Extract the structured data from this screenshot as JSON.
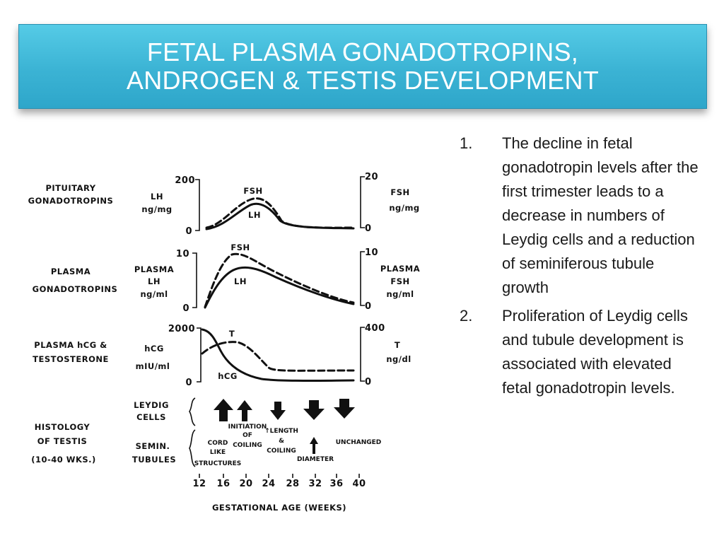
{
  "title": {
    "line1": "FETAL PLASMA GONADOTROPINS,",
    "line2": "ANDROGEN & TESTIS DEVELOPMENT"
  },
  "figure": {
    "row1": {
      "label_line1": "PITUITARY",
      "label_line2": "GONADOTROPINS",
      "left_unit_line1": "LH",
      "left_unit_line2": "ng/mg",
      "left_max": "200",
      "left_min": "0",
      "right_unit_line1": "FSH",
      "right_unit_line2": "ng/mg",
      "right_max": "20",
      "right_min": "0",
      "curve_label_1": "FSH",
      "curve_label_2": "LH"
    },
    "row2": {
      "label_line1": "PLASMA",
      "label_line2": "GONADOTROPINS",
      "left_unit_line1": "PLASMA",
      "left_unit_line2": "LH",
      "left_unit_line3": "ng/ml",
      "left_max": "10",
      "left_min": "0",
      "right_unit_line1": "PLASMA",
      "right_unit_line2": "FSH",
      "right_unit_line3": "ng/ml",
      "right_max": "10",
      "right_min": "0",
      "curve_label_1": "FSH",
      "curve_label_2": "LH"
    },
    "row3": {
      "label_line1": "PLASMA hCG &",
      "label_line2": "TESTOSTERONE",
      "left_unit_line1": "hCG",
      "left_unit_line2": "mIU/ml",
      "left_max": "2000",
      "left_min": "0",
      "right_unit_line1": "T",
      "right_unit_line2": "ng/dl",
      "right_max": "400",
      "right_min": "0",
      "curve_label_1": "T",
      "curve_label_2": "hCG"
    },
    "histology": {
      "label_line1": "HISTOLOGY",
      "label_line2": "OF TESTIS",
      "label_line3": "(10-40 WKS.)",
      "leydig_line1": "LEYDIG",
      "leydig_line2": "CELLS",
      "semin_line1": "SEMIN.",
      "semin_line2": "TUBULES",
      "arrows": [
        "up",
        "up",
        "down",
        "down",
        "down"
      ],
      "cord_line1": "CORD",
      "cord_line2": "LIKE",
      "cord_line3": "STRUCTURES",
      "init_line1": "INITIATION",
      "init_line2": "OF",
      "init_line3": "COILING",
      "length_line1": "↑LENGTH",
      "length_line2": "&",
      "length_line3": "COILING",
      "diameter": "DIAMETER",
      "unchanged": "UNCHANGED"
    },
    "x_axis": {
      "ticks": [
        "12",
        "16",
        "20",
        "24",
        "28",
        "32",
        "36",
        "40"
      ],
      "title": "GESTATIONAL AGE (WEEKS)"
    }
  },
  "points": [
    {
      "num": "1.",
      "text": "The decline in fetal gonadotropin levels after the first trimester leads to a decrease in numbers of Leydig cells and a reduction of seminiferous tubule growth"
    },
    {
      "num": "2.",
      "text": "Proliferation of Leydig cells and tubule development is associated with elevated fetal gonadotropin levels."
    }
  ],
  "colors": {
    "banner": "#3bb3d4",
    "title_text": "#ffffff",
    "body_text": "#1a1a1a"
  }
}
